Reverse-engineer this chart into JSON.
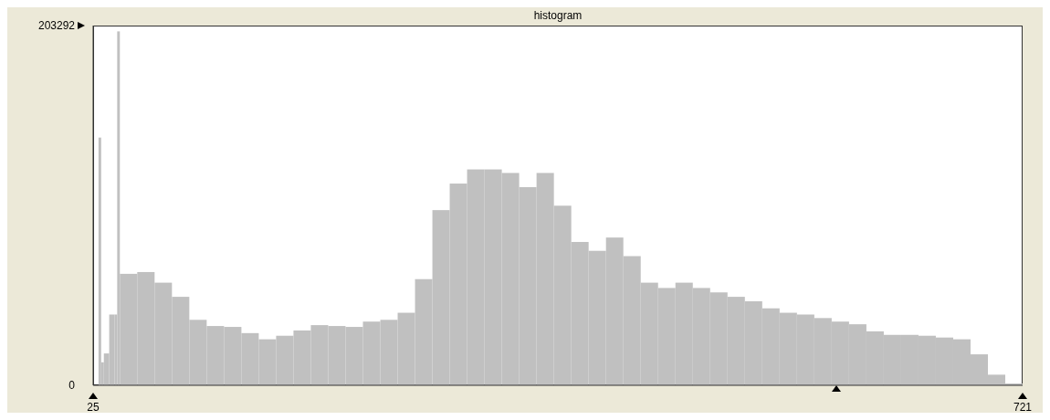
{
  "chart_data": {
    "type": "histogram",
    "title": "histogram",
    "bins": [
      29,
      31,
      33,
      37,
      41,
      43,
      45,
      58,
      71,
      84,
      97,
      110,
      123,
      136,
      149,
      162,
      175,
      188,
      201,
      214,
      227,
      240,
      253,
      266,
      279,
      292,
      305,
      318,
      331,
      344,
      357,
      370,
      383,
      396,
      409,
      422,
      435,
      448,
      461,
      474,
      487,
      500,
      513,
      526,
      539,
      552,
      565,
      578,
      591,
      604,
      617,
      630,
      643,
      656,
      669,
      682,
      695,
      708,
      721
    ],
    "values": [
      140000,
      13000,
      18000,
      40000,
      40000,
      200000,
      63000,
      64000,
      58000,
      50000,
      37000,
      33500,
      33000,
      29500,
      26000,
      28000,
      31000,
      34000,
      33500,
      33000,
      36000,
      37000,
      41000,
      60000,
      99000,
      114000,
      122000,
      122000,
      120000,
      112000,
      120000,
      101500,
      81000,
      76000,
      83500,
      73000,
      58000,
      55000,
      58000,
      55000,
      52500,
      50000,
      47500,
      43500,
      41000,
      40000,
      38000,
      36000,
      34500,
      30500,
      28500,
      28500,
      28000,
      27000,
      26000,
      17500,
      6000,
      1000
    ],
    "color": "#c0c0c0",
    "xlim": [
      25,
      721
    ],
    "xticks": [
      25,
      721
    ],
    "ylim": [
      0,
      203292
    ],
    "yticks": [
      0,
      203292
    ]
  }
}
